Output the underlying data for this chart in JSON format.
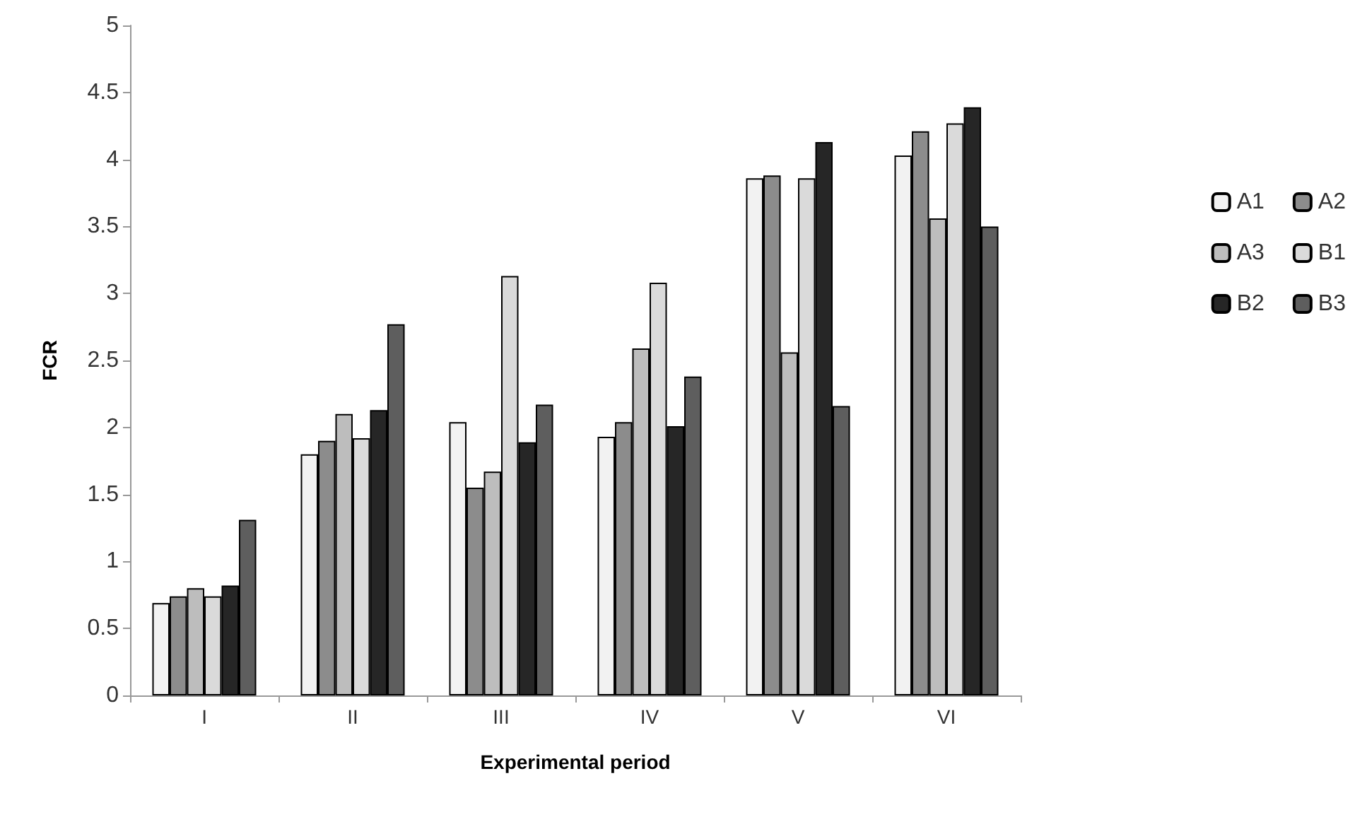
{
  "chart_data": {
    "type": "bar",
    "xlabel": "Experimental period",
    "ylabel": "FCR",
    "categories": [
      "I",
      "II",
      "III",
      "IV",
      "V",
      "VI"
    ],
    "series": [
      {
        "name": "A1",
        "color": "#f2f2f2",
        "values": [
          0.69,
          1.8,
          2.04,
          1.93,
          3.86,
          4.03
        ]
      },
      {
        "name": "A2",
        "color": "#8c8c8c",
        "values": [
          0.74,
          1.9,
          1.55,
          2.04,
          3.88,
          4.21
        ]
      },
      {
        "name": "A3",
        "color": "#bdbdbd",
        "values": [
          0.8,
          2.1,
          1.67,
          2.59,
          2.56,
          3.56
        ]
      },
      {
        "name": "B1",
        "color": "#dadada",
        "values": [
          0.74,
          1.92,
          3.13,
          3.08,
          3.86,
          4.27
        ]
      },
      {
        "name": "B2",
        "color": "#262626",
        "values": [
          0.82,
          2.13,
          1.89,
          2.01,
          4.13,
          4.39
        ]
      },
      {
        "name": "B3",
        "color": "#5e5e5e",
        "values": [
          1.31,
          2.77,
          2.17,
          2.38,
          2.16,
          3.5
        ]
      }
    ],
    "ylim": [
      0,
      5
    ],
    "yticks": [
      0,
      0.5,
      1,
      1.5,
      2,
      2.5,
      3,
      3.5,
      4,
      4.5,
      5
    ],
    "grid": false,
    "legend": "right"
  }
}
